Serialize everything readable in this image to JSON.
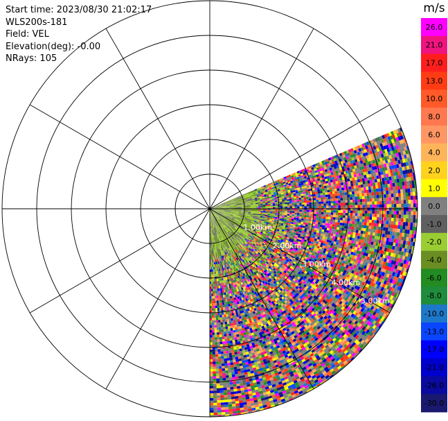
{
  "info": {
    "start_time": "Start time: 2023/08/30 21:02:17",
    "instrument": "WLS200s-181",
    "field": "Field: VEL",
    "elevation": "Elevation(deg): -0.00",
    "nrays": "NRays: 105"
  },
  "chart_data": {
    "type": "heatmap",
    "subtype": "polar-ppi",
    "field": "VEL",
    "units": "m/s",
    "elevation_deg": -0.0,
    "n_rays": 105,
    "azimuth_coverage_deg": [
      67,
      180
    ],
    "max_range_km": 6,
    "range_rings_km": [
      1,
      2,
      3,
      4,
      5,
      6
    ],
    "range_ring_labels": [
      "1.00km",
      "2.00km",
      "3.00km",
      "4.00km",
      "5.00km"
    ],
    "spoke_interval_deg": 30,
    "colorbar": {
      "title": "m/s",
      "ticks": [
        "26.0",
        "21.0",
        "17.0",
        "13.0",
        "10.0",
        "8.0",
        "6.0",
        "4.0",
        "2.0",
        "1.0",
        "0.0",
        "-1.0",
        "-2.0",
        "-4.0",
        "-6.0",
        "-8.0",
        "-10.0",
        "-13.0",
        "-17.0",
        "-21.0",
        "-26.0",
        "-30.0"
      ],
      "colors": [
        "#ff00ff",
        "#f0147f",
        "#ff1e1e",
        "#ff3c14",
        "#ff5a28",
        "#ff7850",
        "#ff9664",
        "#ffb45a",
        "#ffd21e",
        "#ffff00",
        "#808080",
        "#606060",
        "#9acd32",
        "#6b8e23",
        "#228b22",
        "#1e8c3c",
        "#1e78c8",
        "#0a46ff",
        "#0000ff",
        "#0000cd",
        "#0a0aa0",
        "#191970"
      ]
    },
    "pattern": "near range (<1.5 km) mostly low velocity (green/olive/gray), far range highly noisy mixed colors"
  }
}
